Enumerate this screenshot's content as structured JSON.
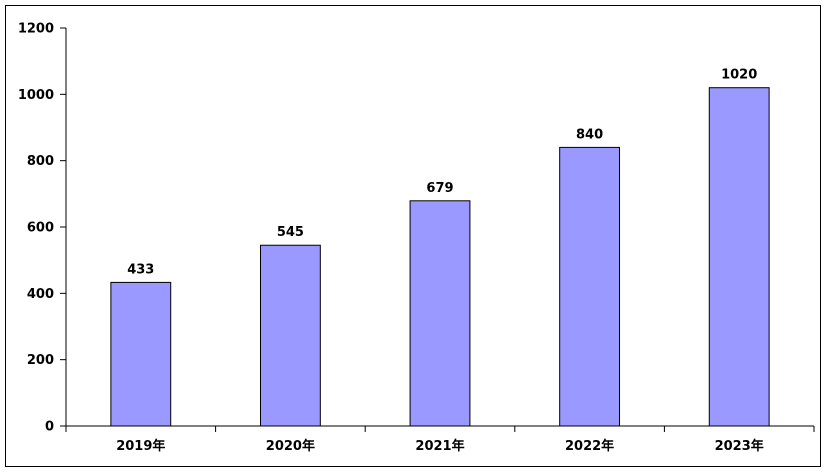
{
  "chart_data": {
    "type": "bar",
    "categories": [
      "2019年",
      "2020年",
      "2021年",
      "2022年",
      "2023年"
    ],
    "values": [
      433,
      545,
      679,
      840,
      1020
    ],
    "data_labels": [
      "433",
      "545",
      "679",
      "840",
      "1020"
    ],
    "title": "",
    "xlabel": "",
    "ylabel": "",
    "ylim": [
      0,
      1200
    ],
    "yticks": [
      0,
      200,
      400,
      600,
      800,
      1000,
      1200
    ],
    "ytick_labels": [
      "0",
      "200",
      "400",
      "600",
      "800",
      "1000",
      "1200"
    ],
    "grid": false,
    "legend": "none",
    "colors": {
      "bar_fill": "#9999ff",
      "bar_stroke": "#000000",
      "axis": "#000000",
      "text": "#000000"
    }
  }
}
